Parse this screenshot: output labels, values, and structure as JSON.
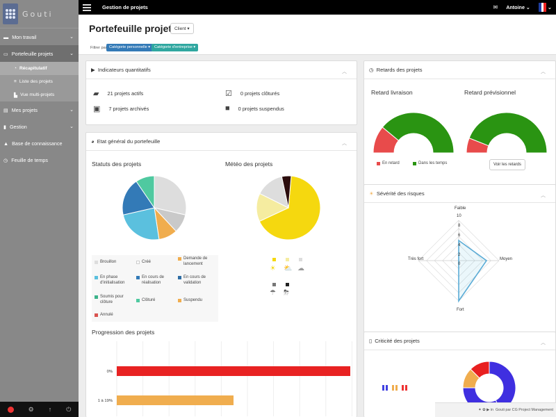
{
  "sidebar": {
    "brand": "Gouti",
    "items": [
      {
        "label": "Mon travail"
      },
      {
        "label": "Portefeuille projets"
      },
      {
        "label": "Mes projets"
      },
      {
        "label": "Gestion"
      },
      {
        "label": "Base de connaissance"
      },
      {
        "label": "Feuille de temps"
      }
    ],
    "sub_items": [
      {
        "label": "Récapitulatif"
      },
      {
        "label": "Liste des projets"
      },
      {
        "label": "Vue multi-projets"
      }
    ]
  },
  "topbar": {
    "title": "Gestion de projets",
    "user": "Antoine"
  },
  "header": {
    "title": "Portefeuille projets",
    "client_label": "Client",
    "filter_label": "Filtrer par",
    "chips": [
      {
        "label": "Catégorie personnelle",
        "color": "#337ab7"
      },
      {
        "label": "Catégorie d'entreprise",
        "color": "#2fa7a0"
      }
    ]
  },
  "indicators": {
    "title": "Indicateurs quantitatifs",
    "active": "21 projets actifs",
    "archived": "7 projets archivés",
    "closed": "0 projets clôturés",
    "suspended": "0 projets suspendus"
  },
  "general": {
    "title": "Etat général du portefeuille",
    "statuts_title": "Statuts des projets",
    "meteo_title": "Météo des projets",
    "legend": [
      {
        "label": "Brouillon",
        "color": "#dddddd"
      },
      {
        "label": "Créé",
        "color": "#ffffff"
      },
      {
        "label": "Demande de lancement",
        "color": "#f0ad4e"
      },
      {
        "label": "En phase d'initialisation",
        "color": "#5bc0de"
      },
      {
        "label": "En cours de réalisation",
        "color": "#337ab7"
      },
      {
        "label": "En cours de validation",
        "color": "#2e6da4"
      },
      {
        "label": "Soumis pour clôture",
        "color": "#3cb38a"
      },
      {
        "label": "Clôturé",
        "color": "#4fc9a0"
      },
      {
        "label": "Suspendu",
        "color": "#f0ad4e"
      },
      {
        "label": "Annulé",
        "color": "#d9534f"
      }
    ],
    "progression_title": "Progression des projets",
    "progression_bars": [
      {
        "label": "0%",
        "value": 100,
        "color": "#e82222"
      },
      {
        "label": "1 à 19%",
        "value": 50,
        "color": "#f0ad4e"
      }
    ]
  },
  "retards": {
    "title": "Retards des projets",
    "livraison_title": "Retard livraison",
    "previsionnel_title": "Retard prévisionnel",
    "livraison_late_fraction": 0.22,
    "previsionnel_late_fraction": 0.12,
    "legend_late": "En retard",
    "legend_ontime": "Dans les temps",
    "button": "Voir les retards"
  },
  "risques": {
    "title": "Sévérité des risques",
    "axes": [
      "Faible",
      "Moyen",
      "Fort",
      "Très fort"
    ],
    "ticks": [
      "10",
      "8",
      "6",
      "4",
      "2",
      "0"
    ]
  },
  "criticite": {
    "title": "Criticité des projets"
  },
  "footer": {
    "text": "Gouti par CG Project Management"
  },
  "chart_data": [
    {
      "type": "pie",
      "title": "Statuts des projets",
      "categories": [
        "Brouillon",
        "Créé",
        "Demande de lancement",
        "En phase d'initialisation",
        "En cours de réalisation",
        "Soumis pour clôture"
      ],
      "values": [
        6,
        2,
        2,
        5,
        4,
        2
      ]
    },
    {
      "type": "pie",
      "title": "Météo des projets",
      "categories": [
        "Soleil",
        "Nuageux",
        "Gris",
        "Orage"
      ],
      "values": [
        14,
        3,
        3,
        1
      ]
    },
    {
      "type": "bar",
      "title": "Progression des projets",
      "categories": [
        "0%",
        "1 à 19%"
      ],
      "values": [
        100,
        50
      ]
    }
  ]
}
